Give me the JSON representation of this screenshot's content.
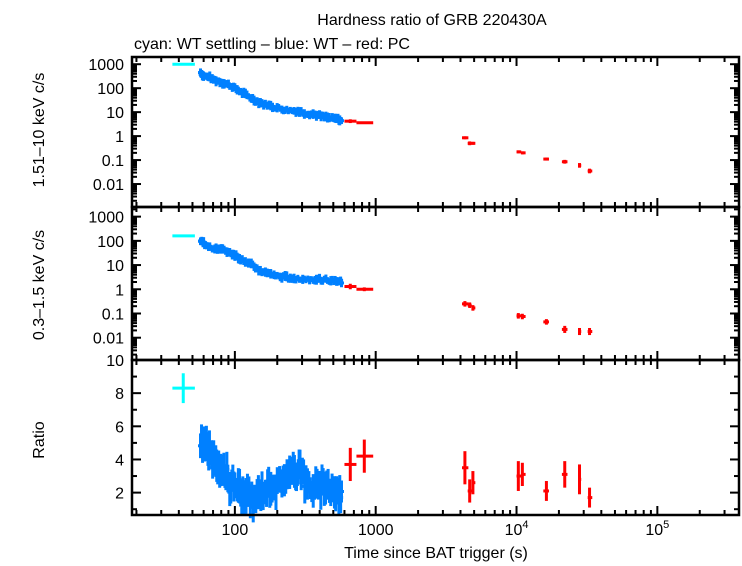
{
  "chart_data": [
    {
      "type": "scatter",
      "panel": "hard-band-rate",
      "title": "Hardness ratio of GRB 220430A",
      "subtitle": "cyan: WT settling – blue: WT – red: PC",
      "ylabel": "1.51–10 keV c/s",
      "xscale": "log",
      "yscale": "log",
      "xlim": [
        18.6,
        380000
      ],
      "ylim": [
        0.0011,
        2000
      ],
      "yticks": [
        1000,
        100,
        10,
        1,
        0.1,
        0.01
      ],
      "ytick_labels": [
        "1000",
        "100",
        "10",
        "1",
        "0.1",
        "0.01"
      ],
      "series": [
        {
          "name": "WT settling",
          "color": "#00ffff",
          "points": [
            [
              43,
              1000,
              36,
              52,
              1.06
            ]
          ]
        },
        {
          "name": "WT",
          "color": "#0080ff",
          "trend": [
            [
              57,
              450
            ],
            [
              60,
              330
            ],
            [
              65,
              290
            ],
            [
              72,
              220
            ],
            [
              80,
              180
            ],
            [
              90,
              140
            ],
            [
              100,
              100
            ],
            [
              110,
              70
            ],
            [
              125,
              45
            ],
            [
              140,
              30
            ],
            [
              160,
              22
            ],
            [
              185,
              17
            ],
            [
              210,
              14
            ],
            [
              240,
              12
            ],
            [
              280,
              11
            ],
            [
              320,
              9
            ],
            [
              370,
              8
            ],
            [
              420,
              6.5
            ],
            [
              480,
              5.5
            ],
            [
              540,
              5
            ],
            [
              580,
              4
            ]
          ]
        },
        {
          "name": "PC",
          "color": "#ff0000",
          "points": [
            [
              660,
              4.2,
              600,
              730,
              1.2
            ],
            [
              830,
              3.6,
              730,
              960,
              1.1
            ],
            [
              4300,
              0.85,
              4100,
              4550,
              1.15
            ],
            [
              4650,
              0.5,
              4500,
              4800,
              1.2
            ],
            [
              4900,
              0.5,
              4800,
              5100,
              1.15
            ],
            [
              10300,
              0.22,
              10000,
              10800,
              1.15
            ],
            [
              11000,
              0.2,
              10800,
              11600,
              1.15
            ],
            [
              16300,
              0.11,
              15500,
              17000,
              1.15
            ],
            [
              22000,
              0.085,
              21000,
              23000,
              1.2
            ],
            [
              28000,
              0.06,
              27500,
              28800,
              1.25
            ],
            [
              33000,
              0.035,
              32000,
              34500,
              1.25
            ]
          ]
        }
      ]
    },
    {
      "type": "scatter",
      "panel": "soft-band-rate",
      "ylabel": "0.3–1.5 keV c/s",
      "xscale": "log",
      "yscale": "log",
      "xlim": [
        18.6,
        380000
      ],
      "ylim": [
        0.0012,
        2500
      ],
      "yticks": [
        1000,
        100,
        10,
        1,
        0.1,
        0.01
      ],
      "ytick_labels": [
        "1000",
        "100",
        "10",
        "1",
        "0.1",
        "0.01"
      ],
      "series": [
        {
          "name": "WT settling",
          "color": "#00ffff",
          "points": [
            [
              43,
              160,
              36,
              52,
              1.07
            ]
          ]
        },
        {
          "name": "WT",
          "color": "#0080ff",
          "trend": [
            [
              57,
              110
            ],
            [
              60,
              80
            ],
            [
              65,
              55
            ],
            [
              72,
              50
            ],
            [
              80,
              45
            ],
            [
              90,
              35
            ],
            [
              100,
              25
            ],
            [
              110,
              18
            ],
            [
              125,
              12
            ],
            [
              140,
              8
            ],
            [
              160,
              5
            ],
            [
              185,
              4
            ],
            [
              210,
              3.3
            ],
            [
              240,
              3
            ],
            [
              280,
              2.8
            ],
            [
              320,
              2.6
            ],
            [
              370,
              2.6
            ],
            [
              420,
              2.5
            ],
            [
              480,
              2.3
            ],
            [
              540,
              2.2
            ],
            [
              580,
              1.8
            ]
          ]
        },
        {
          "name": "PC",
          "color": "#ff0000",
          "points": [
            [
              660,
              1.3,
              600,
              730,
              1.3
            ],
            [
              830,
              1.0,
              730,
              960,
              1.2
            ],
            [
              4300,
              0.25,
              4100,
              4550,
              1.3
            ],
            [
              4650,
              0.22,
              4500,
              4800,
              1.3
            ],
            [
              4900,
              0.17,
              4800,
              5100,
              1.3
            ],
            [
              10300,
              0.08,
              10000,
              10800,
              1.3
            ],
            [
              11000,
              0.075,
              10800,
              11600,
              1.3
            ],
            [
              16300,
              0.045,
              15500,
              17000,
              1.3
            ],
            [
              22000,
              0.022,
              21000,
              23000,
              1.4
            ],
            [
              28000,
              0.018,
              27500,
              28800,
              1.4
            ],
            [
              33000,
              0.018,
              32000,
              34500,
              1.4
            ]
          ]
        }
      ]
    },
    {
      "type": "scatter",
      "panel": "ratio",
      "ylabel": "Ratio",
      "xlabel": "Time since BAT trigger (s)",
      "xscale": "log",
      "yscale": "linear",
      "xlim": [
        18.6,
        380000
      ],
      "ylim": [
        0.65,
        10
      ],
      "yticks": [
        10,
        8,
        6,
        4,
        2
      ],
      "ytick_labels": [
        "10",
        "8",
        "6",
        "4",
        "2"
      ],
      "xticks": [
        100,
        1000,
        10000,
        100000
      ],
      "xtick_labels": [
        "100",
        "1000",
        "10",
        "10"
      ],
      "xtick_exponents": [
        "",
        "",
        "4",
        "5"
      ],
      "series": [
        {
          "name": "WT settling",
          "color": "#00ffff",
          "points": [
            [
              43,
              8.3,
              36,
              52,
              0.9
            ]
          ]
        },
        {
          "name": "WT",
          "color": "#0080ff",
          "trend": [
            [
              57,
              4.8
            ],
            [
              62,
              5.0
            ],
            [
              66,
              4.5
            ],
            [
              72,
              3.5
            ],
            [
              78,
              3.4
            ],
            [
              85,
              3.3
            ],
            [
              92,
              2.5
            ],
            [
              100,
              2.6
            ],
            [
              110,
              2.0
            ],
            [
              120,
              1.8
            ],
            [
              135,
              1.5
            ],
            [
              150,
              2.0
            ],
            [
              165,
              2.2
            ],
            [
              180,
              2.6
            ],
            [
              200,
              2.4
            ],
            [
              220,
              3.0
            ],
            [
              245,
              3.0
            ],
            [
              270,
              3.2
            ],
            [
              290,
              3.8
            ],
            [
              320,
              2.5
            ],
            [
              360,
              2.4
            ],
            [
              400,
              2.3
            ],
            [
              440,
              2.5
            ],
            [
              490,
              2.3
            ],
            [
              540,
              2.0
            ],
            [
              580,
              1.8
            ]
          ]
        },
        {
          "name": "PC",
          "color": "#ff0000",
          "points": [
            [
              660,
              3.7,
              600,
              730,
              1.0
            ],
            [
              830,
              4.2,
              730,
              960,
              1.0
            ],
            [
              4300,
              3.5,
              4100,
              4550,
              1.0
            ],
            [
              4650,
              2.1,
              4500,
              4800,
              0.7
            ],
            [
              4900,
              2.6,
              4800,
              5100,
              0.7
            ],
            [
              10300,
              3.0,
              10000,
              10800,
              0.9
            ],
            [
              11000,
              3.1,
              10800,
              11600,
              0.7
            ],
            [
              16300,
              2.1,
              15500,
              17000,
              0.6
            ],
            [
              22000,
              3.1,
              21000,
              23000,
              0.8
            ],
            [
              28000,
              2.8,
              27500,
              28800,
              0.9
            ],
            [
              33000,
              1.7,
              32000,
              34500,
              0.6
            ]
          ]
        }
      ]
    }
  ]
}
